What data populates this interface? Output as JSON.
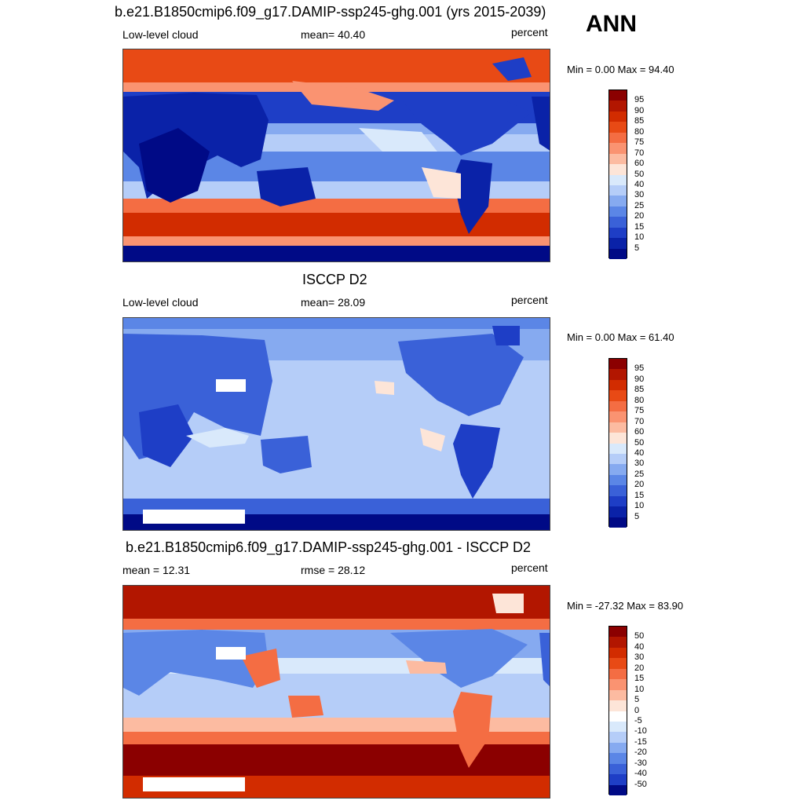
{
  "season": "ANN",
  "panels": [
    {
      "title": "b.e21.B1850cmip6.f09_g17.DAMIP-ssp245-ghg.001 (yrs 2015-2039)",
      "left_label": "Low-level cloud",
      "center_label": "mean=  40.40",
      "units": "percent",
      "minmax": "Min =   0.00 Max =  94.40",
      "colorbar": {
        "labels": [
          "95",
          "90",
          "85",
          "80",
          "75",
          "70",
          "60",
          "50",
          "40",
          "30",
          "25",
          "20",
          "15",
          "10",
          "5"
        ],
        "colors": [
          "#8b0000",
          "#b21600",
          "#d22c00",
          "#e84a15",
          "#f46d43",
          "#fa9371",
          "#fcbba1",
          "#fde5d8",
          "#d9e9fb",
          "#b5cdf8",
          "#86aaf0",
          "#5b86e6",
          "#3a61d8",
          "#1e3ec6",
          "#0a22a8",
          "#000a86"
        ]
      },
      "map_theme": "model"
    },
    {
      "title": "ISCCP D2",
      "left_label": "Low-level cloud",
      "center_label": "mean=  28.09",
      "units": "percent",
      "minmax": "Min =   0.00 Max =  61.40",
      "colorbar": {
        "labels": [
          "95",
          "90",
          "85",
          "80",
          "75",
          "70",
          "60",
          "50",
          "40",
          "30",
          "25",
          "20",
          "15",
          "10",
          "5"
        ],
        "colors": [
          "#8b0000",
          "#b21600",
          "#d22c00",
          "#e84a15",
          "#f46d43",
          "#fa9371",
          "#fcbba1",
          "#fde5d8",
          "#d9e9fb",
          "#b5cdf8",
          "#86aaf0",
          "#5b86e6",
          "#3a61d8",
          "#1e3ec6",
          "#0a22a8",
          "#000a86"
        ]
      },
      "map_theme": "obs"
    },
    {
      "title": "b.e21.B1850cmip6.f09_g17.DAMIP-ssp245-ghg.001 - ISCCP D2",
      "left_label": "mean =  12.31",
      "center_label": "rmse =  28.12",
      "units": "percent",
      "minmax": "Min = -27.32 Max =  83.90",
      "colorbar": {
        "labels": [
          "50",
          "40",
          "30",
          "20",
          "15",
          "10",
          "5",
          "0",
          "-5",
          "-10",
          "-15",
          "-20",
          "-30",
          "-40",
          "-50"
        ],
        "colors": [
          "#8b0000",
          "#b21600",
          "#d22c00",
          "#e84a15",
          "#f46d43",
          "#fa9371",
          "#fcbba1",
          "#fde5d8",
          "#ffffff",
          "#d9e9fb",
          "#b5cdf8",
          "#86aaf0",
          "#5b86e6",
          "#3a61d8",
          "#1e3ec6",
          "#000a86"
        ]
      },
      "map_theme": "diff"
    }
  ]
}
